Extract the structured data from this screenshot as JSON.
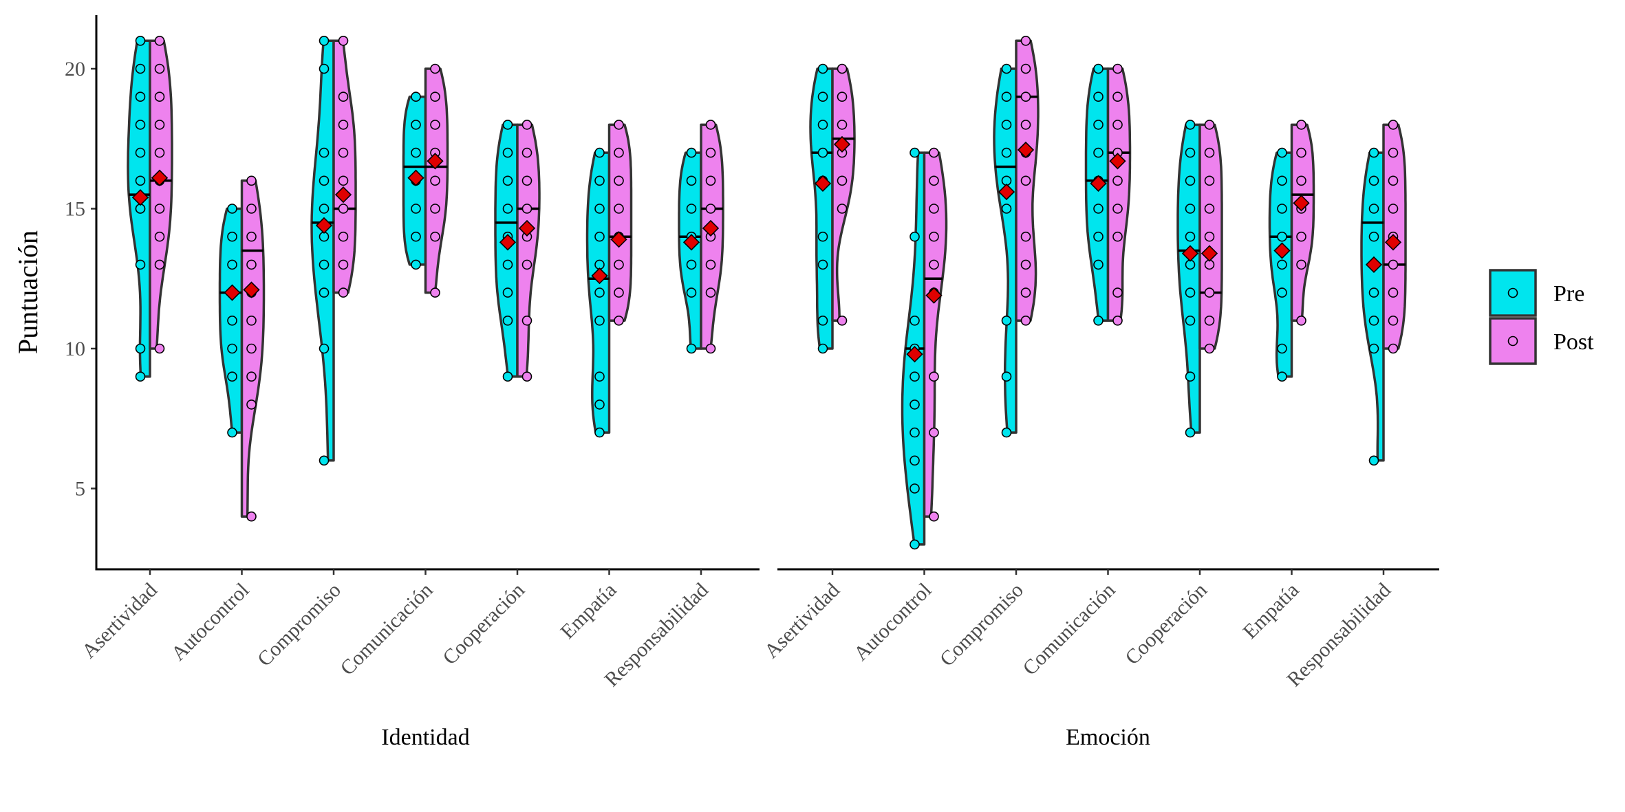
{
  "chart_data": {
    "type": "violin",
    "ylabel": "Puntuación",
    "ylim": [
      2,
      22.5
    ],
    "yticks": [
      5,
      10,
      15,
      20
    ],
    "categories": [
      "Asertividad",
      "Autocontrol",
      "Compromiso",
      "Comunicación",
      "Cooperación",
      "Empatía",
      "Responsabilidad"
    ],
    "legend": {
      "position": "right",
      "items": [
        {
          "label": "Pre",
          "color": "#00E5EE"
        },
        {
          "label": "Post",
          "color": "#EE82EE"
        }
      ]
    },
    "mean_marker_color": "#E00000",
    "panels": [
      {
        "label": "Identidad",
        "groups": [
          {
            "category": "Asertividad",
            "pre": {
              "min": 9,
              "max": 21,
              "median": 15.5,
              "mean": 15.4,
              "points": [
                9,
                10,
                13,
                15,
                15,
                16,
                17,
                18,
                19,
                20,
                21
              ]
            },
            "post": {
              "min": 10,
              "max": 21,
              "median": 16,
              "mean": 16.1,
              "points": [
                10,
                13,
                14,
                15,
                16,
                17,
                18,
                19,
                20,
                21
              ]
            }
          },
          {
            "category": "Autocontrol",
            "pre": {
              "min": 7,
              "max": 15,
              "median": 12,
              "mean": 12.0,
              "points": [
                7,
                9,
                10,
                11,
                12,
                13,
                14,
                15
              ]
            },
            "post": {
              "min": 4,
              "max": 16,
              "median": 13.5,
              "mean": 12.1,
              "points": [
                4,
                8,
                9,
                10,
                11,
                12,
                13,
                14,
                15,
                16
              ]
            }
          },
          {
            "category": "Compromiso",
            "pre": {
              "min": 6,
              "max": 21,
              "median": 14.5,
              "mean": 14.4,
              "points": [
                6,
                10,
                12,
                13,
                14,
                15,
                16,
                17,
                20,
                21
              ]
            },
            "post": {
              "min": 12,
              "max": 21,
              "median": 15,
              "mean": 15.5,
              "points": [
                12,
                13,
                14,
                15,
                16,
                17,
                18,
                19,
                21
              ]
            }
          },
          {
            "category": "Comunicación",
            "pre": {
              "min": 13,
              "max": 19,
              "median": 16.5,
              "mean": 16.1,
              "points": [
                13,
                14,
                15,
                16,
                17,
                18,
                19
              ]
            },
            "post": {
              "min": 12,
              "max": 20,
              "median": 16.5,
              "mean": 16.7,
              "points": [
                12,
                14,
                15,
                16,
                17,
                18,
                19,
                20
              ]
            }
          },
          {
            "category": "Cooperación",
            "pre": {
              "min": 9,
              "max": 18,
              "median": 14.5,
              "mean": 13.8,
              "points": [
                9,
                11,
                12,
                13,
                14,
                15,
                16,
                17,
                18
              ]
            },
            "post": {
              "min": 9,
              "max": 18,
              "median": 15,
              "mean": 14.3,
              "points": [
                9,
                11,
                13,
                14,
                15,
                16,
                17,
                18
              ]
            }
          },
          {
            "category": "Empatía",
            "pre": {
              "min": 7,
              "max": 17,
              "median": 12.5,
              "mean": 12.6,
              "points": [
                7,
                8,
                9,
                11,
                12,
                13,
                14,
                15,
                16,
                17
              ]
            },
            "post": {
              "min": 11,
              "max": 18,
              "median": 14,
              "mean": 13.9,
              "points": [
                11,
                12,
                13,
                14,
                15,
                16,
                17,
                18
              ]
            }
          },
          {
            "category": "Responsabilidad",
            "pre": {
              "min": 10,
              "max": 17,
              "median": 14,
              "mean": 13.8,
              "points": [
                10,
                12,
                13,
                14,
                15,
                16,
                17
              ]
            },
            "post": {
              "min": 10,
              "max": 18,
              "median": 15,
              "mean": 14.3,
              "points": [
                10,
                12,
                13,
                14,
                15,
                16,
                17,
                18
              ]
            }
          }
        ]
      },
      {
        "label": "Emoción",
        "groups": [
          {
            "category": "Asertividad",
            "pre": {
              "min": 10,
              "max": 20,
              "median": 17,
              "mean": 15.9,
              "points": [
                10,
                11,
                13,
                14,
                16,
                17,
                18,
                19,
                20
              ]
            },
            "post": {
              "min": 11,
              "max": 20,
              "median": 17.5,
              "mean": 17.3,
              "points": [
                11,
                15,
                16,
                17,
                18,
                19,
                20
              ]
            }
          },
          {
            "category": "Autocontrol",
            "pre": {
              "min": 3,
              "max": 17,
              "median": 10,
              "mean": 9.8,
              "points": [
                3,
                5,
                6,
                7,
                8,
                9,
                10,
                11,
                14,
                17
              ]
            },
            "post": {
              "min": 4,
              "max": 17,
              "median": 12.5,
              "mean": 11.9,
              "points": [
                4,
                7,
                9,
                12,
                13,
                14,
                15,
                16,
                17
              ]
            }
          },
          {
            "category": "Compromiso",
            "pre": {
              "min": 7,
              "max": 20,
              "median": 16.5,
              "mean": 15.6,
              "points": [
                7,
                9,
                11,
                15,
                16,
                17,
                18,
                19,
                20
              ]
            },
            "post": {
              "min": 11,
              "max": 21,
              "median": 19,
              "mean": 17.1,
              "points": [
                11,
                12,
                13,
                14,
                16,
                17,
                18,
                19,
                20,
                21
              ]
            }
          },
          {
            "category": "Comunicación",
            "pre": {
              "min": 11,
              "max": 20,
              "median": 16,
              "mean": 15.9,
              "points": [
                11,
                13,
                14,
                15,
                16,
                17,
                18,
                19,
                20
              ]
            },
            "post": {
              "min": 11,
              "max": 20,
              "median": 17,
              "mean": 16.7,
              "points": [
                11,
                12,
                14,
                15,
                16,
                17,
                18,
                19,
                20
              ]
            }
          },
          {
            "category": "Cooperación",
            "pre": {
              "min": 7,
              "max": 18,
              "median": 13.5,
              "mean": 13.4,
              "points": [
                7,
                9,
                11,
                12,
                13,
                14,
                15,
                16,
                17,
                18
              ]
            },
            "post": {
              "min": 10,
              "max": 18,
              "median": 12,
              "mean": 13.4,
              "points": [
                10,
                11,
                12,
                13,
                14,
                15,
                16,
                17,
                18
              ]
            }
          },
          {
            "category": "Empatía",
            "pre": {
              "min": 9,
              "max": 17,
              "median": 14,
              "mean": 13.5,
              "points": [
                9,
                10,
                12,
                13,
                14,
                15,
                16,
                17
              ]
            },
            "post": {
              "min": 11,
              "max": 18,
              "median": 15.5,
              "mean": 15.2,
              "points": [
                11,
                13,
                14,
                15,
                16,
                17,
                18
              ]
            }
          },
          {
            "category": "Responsabilidad",
            "pre": {
              "min": 6,
              "max": 17,
              "median": 14.5,
              "mean": 13.0,
              "points": [
                6,
                10,
                11,
                12,
                13,
                14,
                15,
                16,
                17
              ]
            },
            "post": {
              "min": 10,
              "max": 18,
              "median": 13,
              "mean": 13.8,
              "points": [
                10,
                11,
                12,
                13,
                14,
                15,
                16,
                17,
                18
              ]
            }
          }
        ]
      }
    ]
  }
}
